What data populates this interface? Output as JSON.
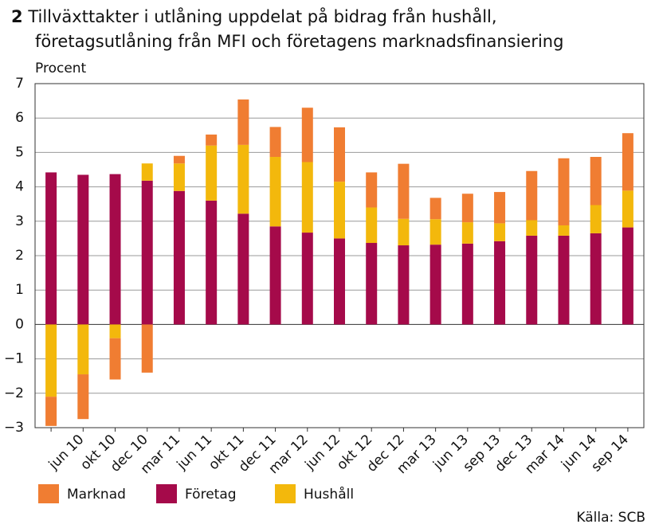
{
  "chart_data": {
    "type": "stacked-bar",
    "title_number": "2",
    "title": [
      "Tillväxttakter i utlåning uppdelat på bidrag från hushåll,",
      "företagsutlåning från MFI och företagens marknadsfinansiering"
    ],
    "y_label": "Procent",
    "source": "Källa: SCB",
    "categories": [
      null,
      "jun 10",
      "okt 10",
      "dec 10",
      "mar 11",
      "jun 11",
      "okt 11",
      "dec 11",
      "mar 12",
      "jun 12",
      "okt 12",
      "dec 12",
      "mar 13",
      "jun 13",
      "sep 13",
      "dec 13",
      "mar 14",
      "jun 14",
      "sep 14"
    ],
    "series": [
      {
        "name": "Företag",
        "color": "#a50a4a",
        "values": [
          4.42,
          4.35,
          4.37,
          4.18,
          3.88,
          3.6,
          3.22,
          2.85,
          2.67,
          2.5,
          2.37,
          2.3,
          2.32,
          2.35,
          2.42,
          2.58,
          2.58,
          2.65,
          2.82
        ]
      },
      {
        "name": "Hushåll",
        "color": "#f3b80c",
        "values": [
          -2.1,
          -1.45,
          -0.4,
          0.5,
          0.8,
          1.6,
          2.0,
          2.02,
          2.05,
          1.65,
          1.03,
          0.77,
          0.74,
          0.62,
          0.52,
          0.45,
          0.3,
          0.82,
          1.07
        ]
      },
      {
        "name": "Marknad",
        "color": "#f07d32",
        "values": [
          -0.85,
          -1.3,
          -1.2,
          -1.4,
          0.22,
          0.32,
          1.32,
          0.87,
          1.58,
          1.58,
          1.02,
          1.6,
          0.62,
          0.83,
          0.91,
          1.43,
          1.95,
          1.4,
          1.67
        ]
      }
    ],
    "legend_order": [
      2,
      0,
      1
    ],
    "ylim": [
      -3,
      7
    ],
    "yticks": [
      {
        "value": -3,
        "label": "−3"
      },
      {
        "value": -2,
        "label": "−2"
      },
      {
        "value": -1,
        "label": "−1"
      },
      0,
      1,
      2,
      3,
      4,
      5,
      6,
      7
    ],
    "grid": true
  }
}
